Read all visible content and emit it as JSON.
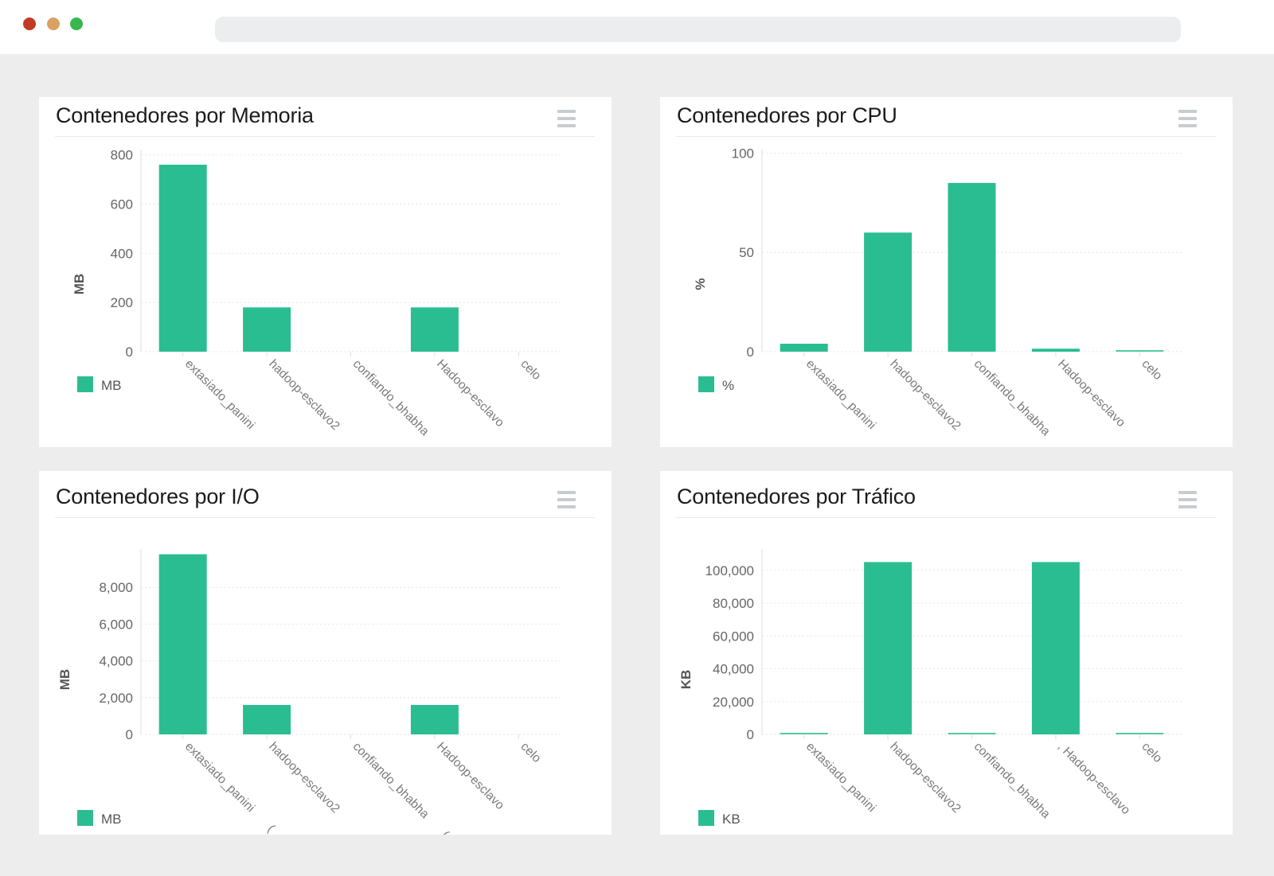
{
  "window": {
    "traffic_lights": [
      {
        "name": "close",
        "color": "#c13b22"
      },
      {
        "name": "minimize",
        "color": "#d9a263"
      },
      {
        "name": "maximize",
        "color": "#38b84c"
      }
    ],
    "url_bar_value": ""
  },
  "theme": {
    "page_bg": "#ededee",
    "topbar_bg": "#ffffff",
    "urlbar_bg": "#ebedef",
    "card_bg": "#ffffff",
    "bar_color": "#2bbd92",
    "bar_color_faint": "#52cba4",
    "grid_color": "#e6e6e6",
    "axis_line_color": "#dcdcde",
    "title_color": "#1b1b1b",
    "divider_color": "#e8e8ea",
    "ytick_color": "#666666",
    "category_color": "#7a7a7a",
    "unit_color": "#555555",
    "legend_text_color": "#555555",
    "menu_icon_color": "#c9ccce"
  },
  "chart_data": [
    {
      "type": "bar",
      "title": "Contenedores por Memoria",
      "ylabel": "MB",
      "legend": "MB",
      "categories": [
        "extasiado_panini",
        "hadoop-esclavo2",
        "confiando_bhabha",
        "Hadoop-esclavo",
        "celo"
      ],
      "values": [
        760,
        180,
        0,
        180,
        0
      ],
      "yticks": [
        0,
        200,
        400,
        600,
        800
      ],
      "ylim": [
        0,
        815
      ],
      "grid": true,
      "legend_position": "bottom-left"
    },
    {
      "type": "bar",
      "title": "Contenedores por CPU",
      "ylabel": "%",
      "legend": "%",
      "categories": [
        "extasiado_panini",
        "hadoop-esclavo2",
        "confiando_bhabha",
        "Hadoop-esclavo",
        "celo"
      ],
      "values": [
        4,
        60,
        85,
        1.5,
        1
      ],
      "yticks": [
        0,
        50,
        100
      ],
      "ylim": [
        0,
        101
      ],
      "grid": true,
      "legend_position": "bottom-left"
    },
    {
      "type": "bar",
      "title": "Contenedores por I/O",
      "ylabel": "MB",
      "legend": "MB",
      "categories": [
        "extasiado_panini       (",
        "hadoop-esclavo2         ,",
        "confiando_bhabha       (",
        "Hadoop-esclavo",
        "celo"
      ],
      "values": [
        9800,
        1600,
        0,
        1600,
        0
      ],
      "yticks": [
        0,
        2000,
        4000,
        6000,
        8000
      ],
      "ylim": [
        0,
        10000
      ],
      "grid": true,
      "legend_position": "bottom-left"
    },
    {
      "type": "bar",
      "title": "Contenedores por Tráfico",
      "ylabel": "KB",
      "legend": "KB",
      "categories": [
        "extasiado_panini",
        "hadoop-esclavo2",
        "confiando_bhabha",
        ", Hadoop-esclavo",
        "celo"
      ],
      "values": [
        800,
        105000,
        800,
        105000,
        800
      ],
      "yticks": [
        0,
        20000,
        40000,
        60000,
        80000,
        100000
      ],
      "ylim": [
        0,
        112000
      ],
      "grid": true,
      "legend_position": "bottom-left"
    }
  ]
}
